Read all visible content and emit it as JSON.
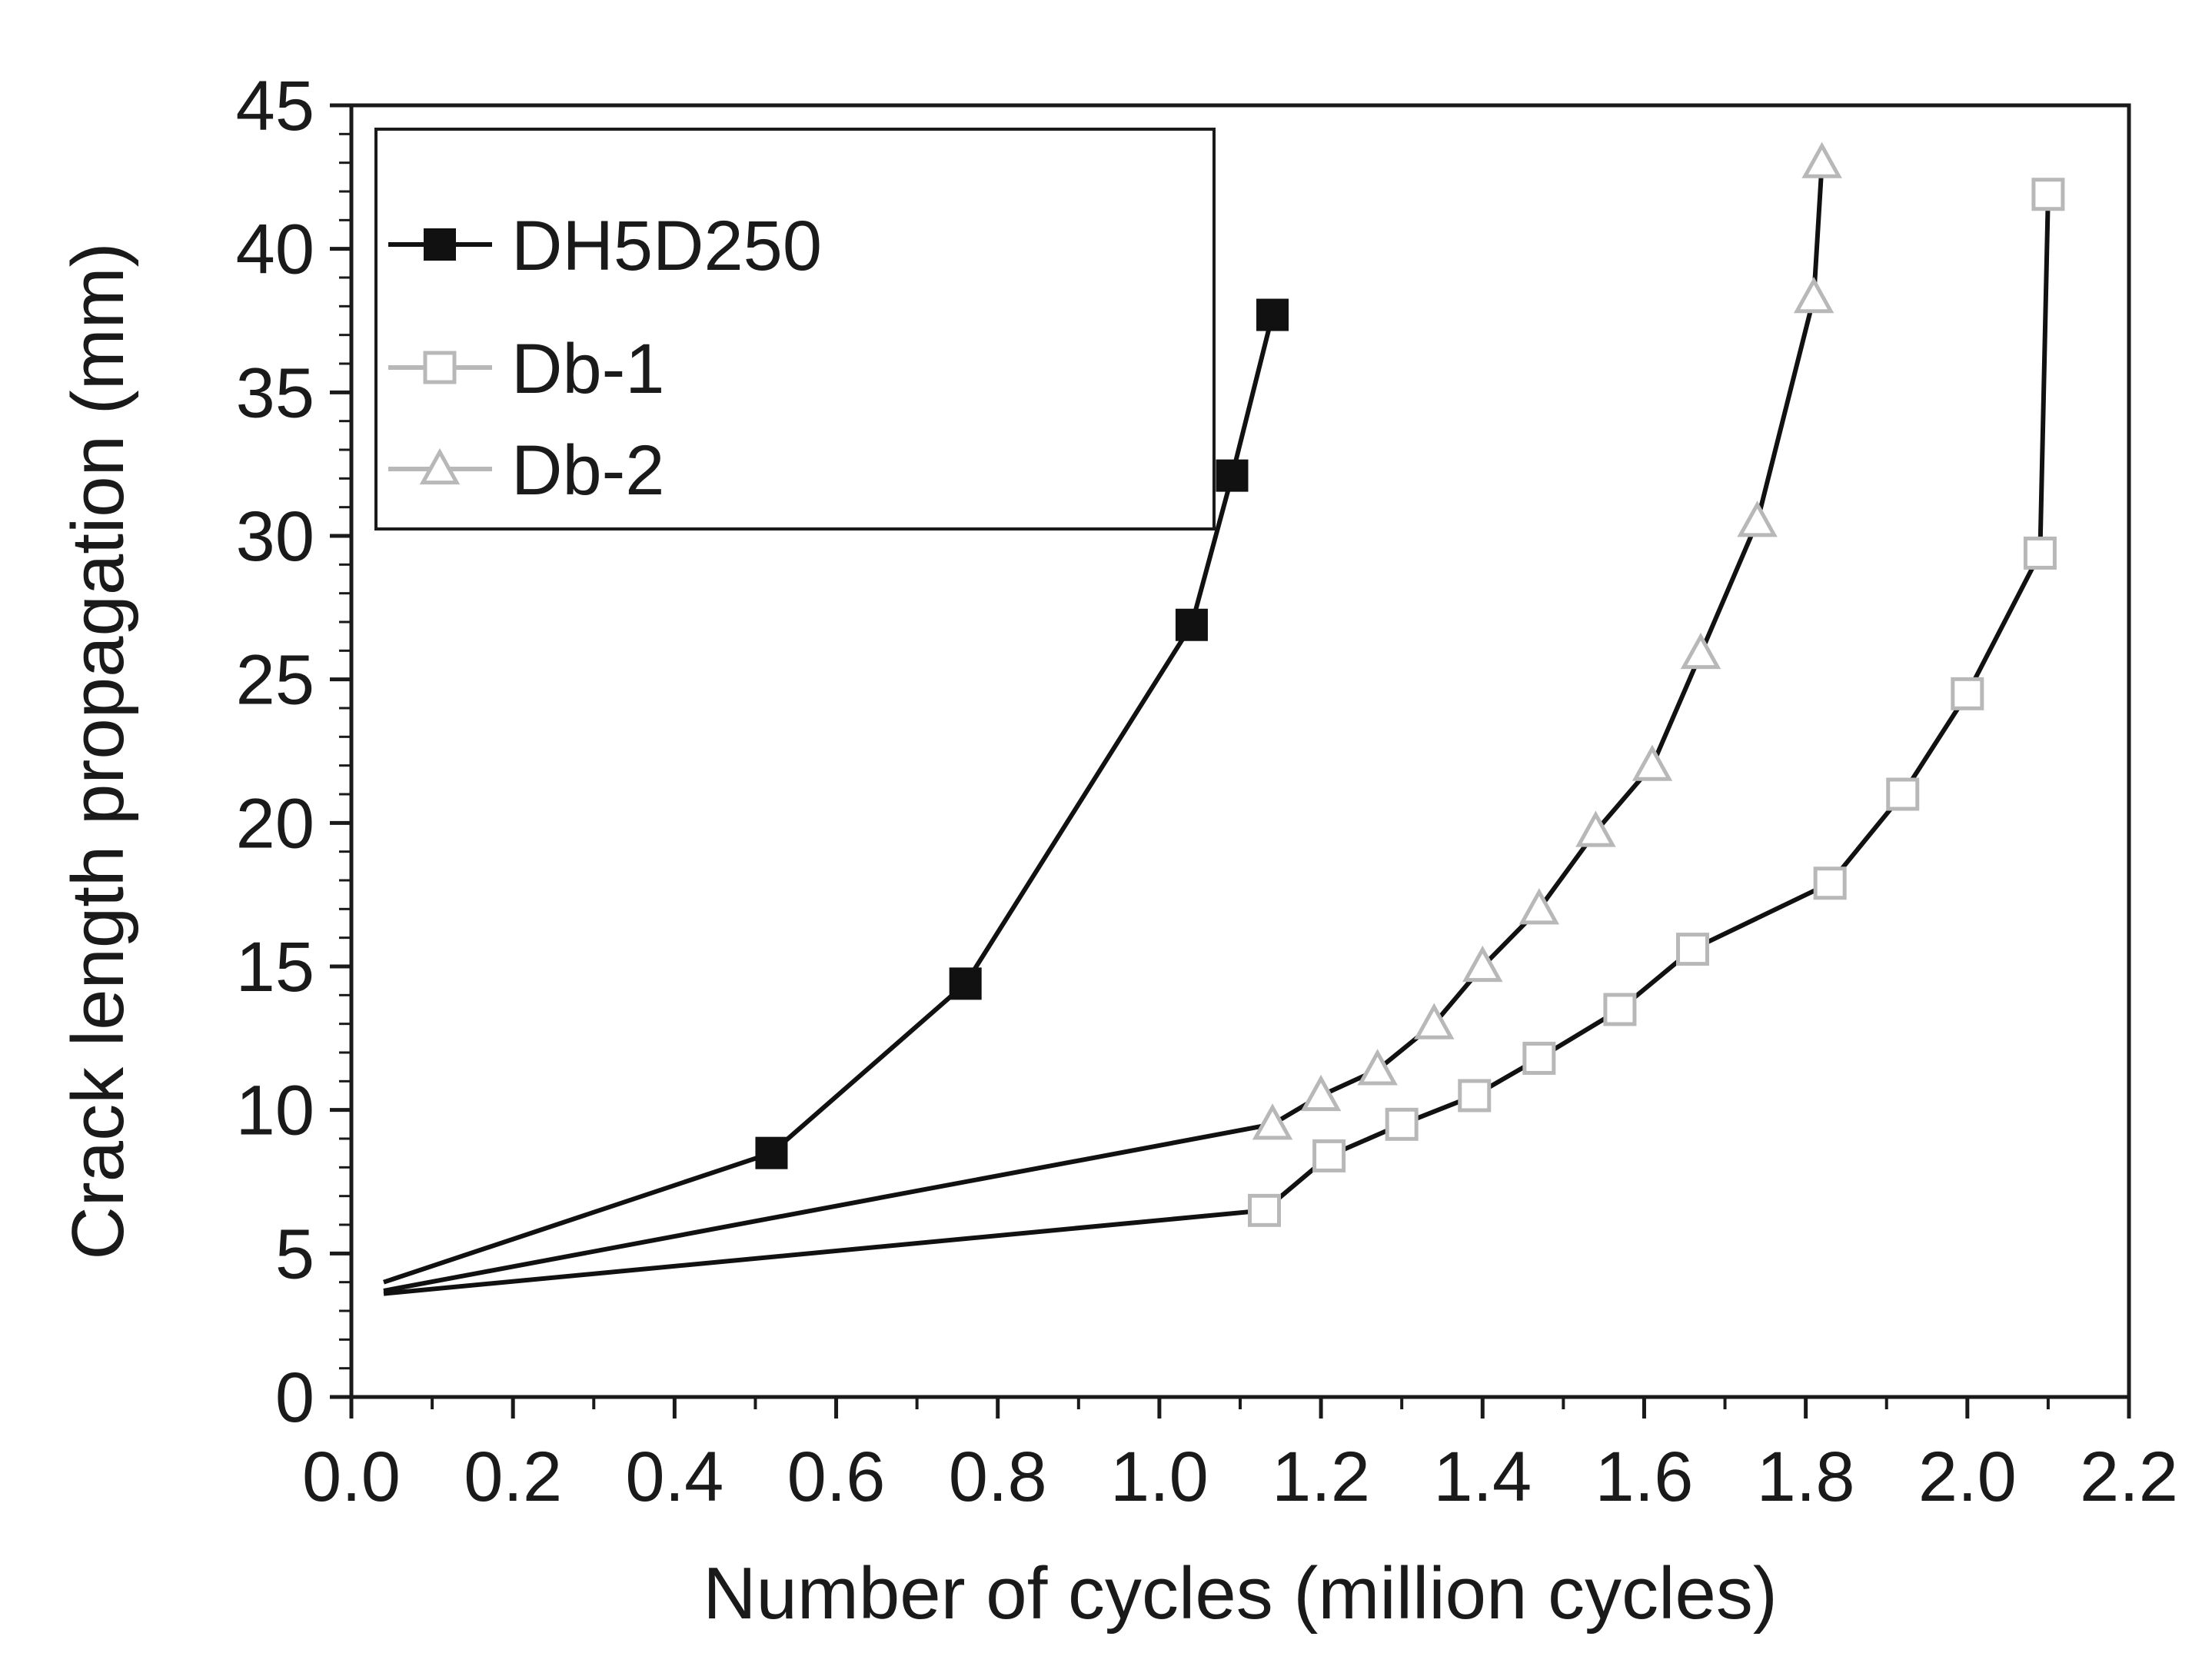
{
  "chart_data": {
    "type": "line",
    "title": "",
    "xlabel": "Number of cycles (million cycles)",
    "ylabel": "Crack length propagation (mm)",
    "xlim": [
      0.0,
      2.2
    ],
    "ylim": [
      0,
      45
    ],
    "x_ticks": [
      0.0,
      0.2,
      0.4,
      0.6,
      0.8,
      1.0,
      1.2,
      1.4,
      1.6,
      1.8,
      2.0,
      2.2
    ],
    "x_tick_labels": [
      "0.0",
      "0.2",
      "0.4",
      "0.6",
      "0.8",
      "1.0",
      "1.2",
      "1.4",
      "1.6",
      "1.8",
      "2.0",
      "2.2"
    ],
    "y_ticks": [
      0,
      5,
      10,
      15,
      20,
      25,
      30,
      35,
      40,
      45
    ],
    "y_tick_labels": [
      "0",
      "5",
      "10",
      "15",
      "20",
      "25",
      "30",
      "35",
      "40",
      "45"
    ],
    "grid": false,
    "legend_position": "top-left",
    "series": [
      {
        "name": "DH5D250",
        "marker": "filled-square",
        "color": "#111111",
        "line_style": "solid",
        "origin": [
          0.04,
          4.0
        ],
        "x": [
          0.52,
          0.76,
          1.04,
          1.09,
          1.14
        ],
        "y": [
          8.5,
          14.4,
          26.9,
          32.1,
          37.7
        ]
      },
      {
        "name": "Db-1",
        "marker": "open-square",
        "color": "#111111",
        "marker_color": "#b8b8b8",
        "line_style": "solid",
        "origin": [
          0.04,
          3.6
        ],
        "x": [
          1.13,
          1.21,
          1.3,
          1.39,
          1.47,
          1.57,
          1.66,
          1.83,
          1.92,
          2.0,
          2.09,
          2.1
        ],
        "y": [
          6.5,
          8.4,
          9.5,
          10.5,
          11.8,
          13.5,
          15.6,
          17.9,
          21.0,
          24.5,
          29.4,
          41.9
        ]
      },
      {
        "name": "Db-2",
        "marker": "open-triangle",
        "color": "#111111",
        "marker_color": "#b8b8b8",
        "line_style": "solid",
        "origin": [
          0.04,
          3.7
        ],
        "x": [
          1.14,
          1.2,
          1.27,
          1.34,
          1.4,
          1.47,
          1.54,
          1.61,
          1.67,
          1.74,
          1.81,
          1.82
        ],
        "y": [
          9.5,
          10.5,
          11.4,
          13.0,
          15.0,
          17.0,
          19.7,
          22.0,
          25.9,
          30.5,
          38.3,
          43.0
        ]
      }
    ]
  }
}
